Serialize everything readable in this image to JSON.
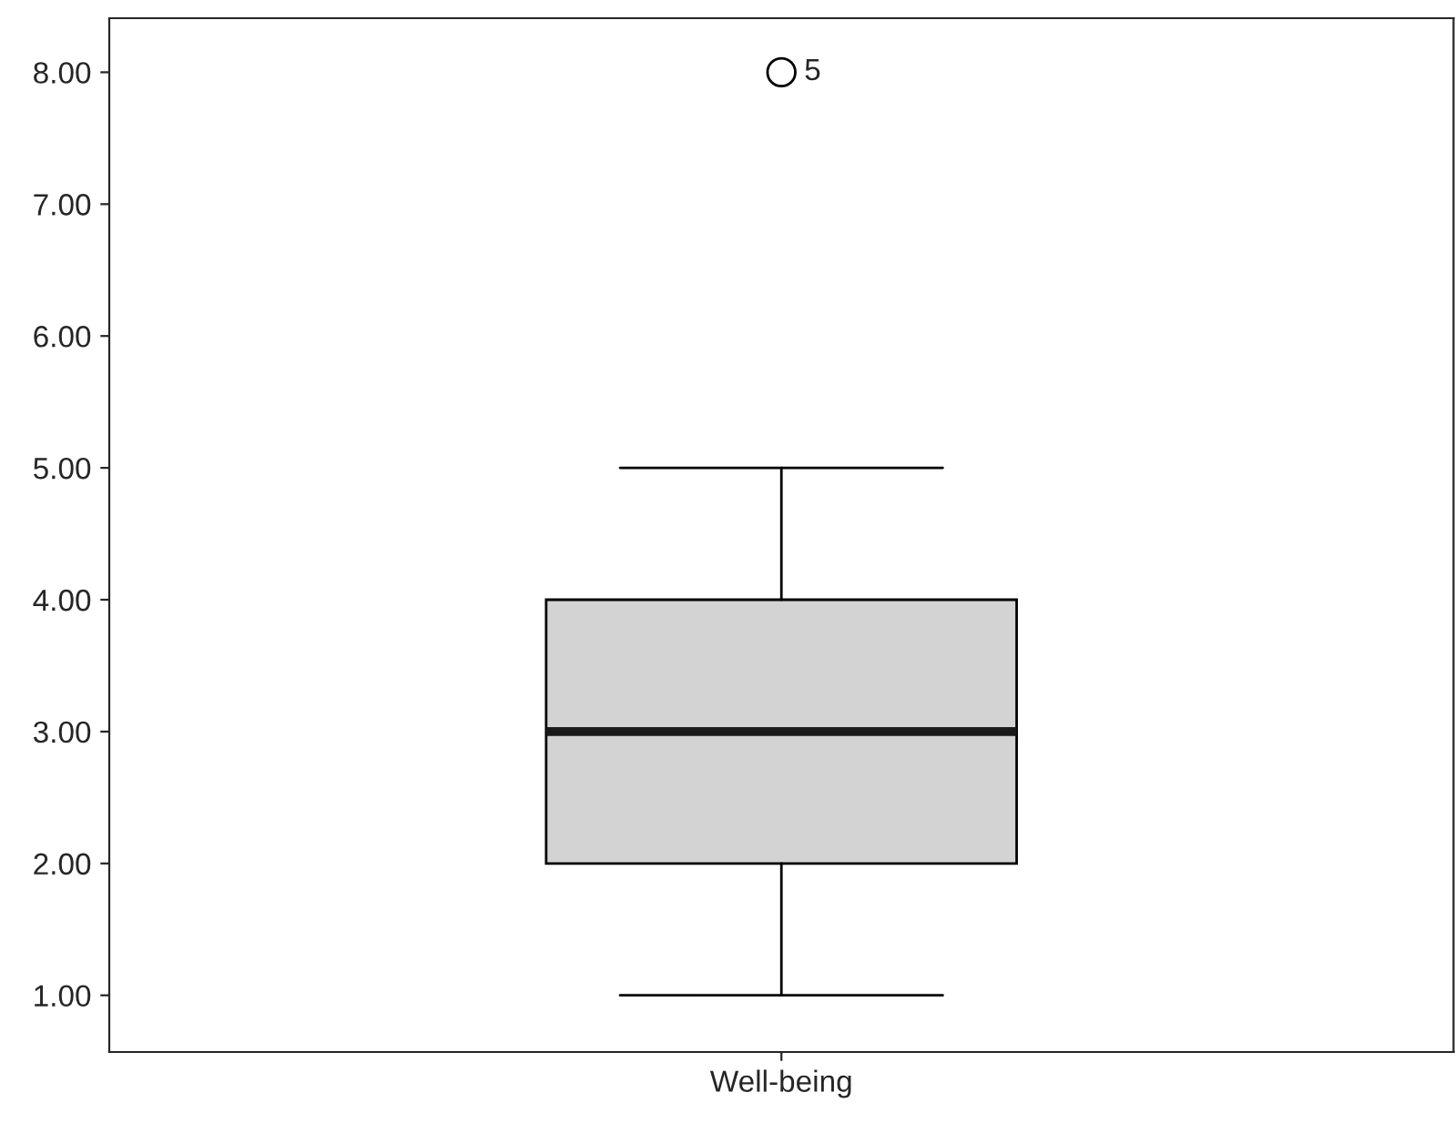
{
  "chart_data": {
    "type": "box",
    "categories": [
      "Well-being"
    ],
    "boxes": [
      {
        "low": 1,
        "q1": 2,
        "median": 3,
        "q3": 4,
        "high": 5,
        "outliers": [
          8
        ]
      }
    ],
    "color": "#d3d3d3",
    "ylim": [
      0.57,
      8.41
    ],
    "yticks": [
      {
        "value": 1,
        "label": "1.00"
      },
      {
        "value": 2,
        "label": "2.00"
      },
      {
        "value": 3,
        "label": "3.00"
      },
      {
        "value": 4,
        "label": "4.00"
      },
      {
        "value": 5,
        "label": "5.00"
      },
      {
        "value": 6,
        "label": "6.00"
      },
      {
        "value": 7,
        "label": "7.00"
      },
      {
        "value": 8,
        "label": "8.00"
      }
    ],
    "annotations": [
      "5"
    ],
    "grid": false
  }
}
